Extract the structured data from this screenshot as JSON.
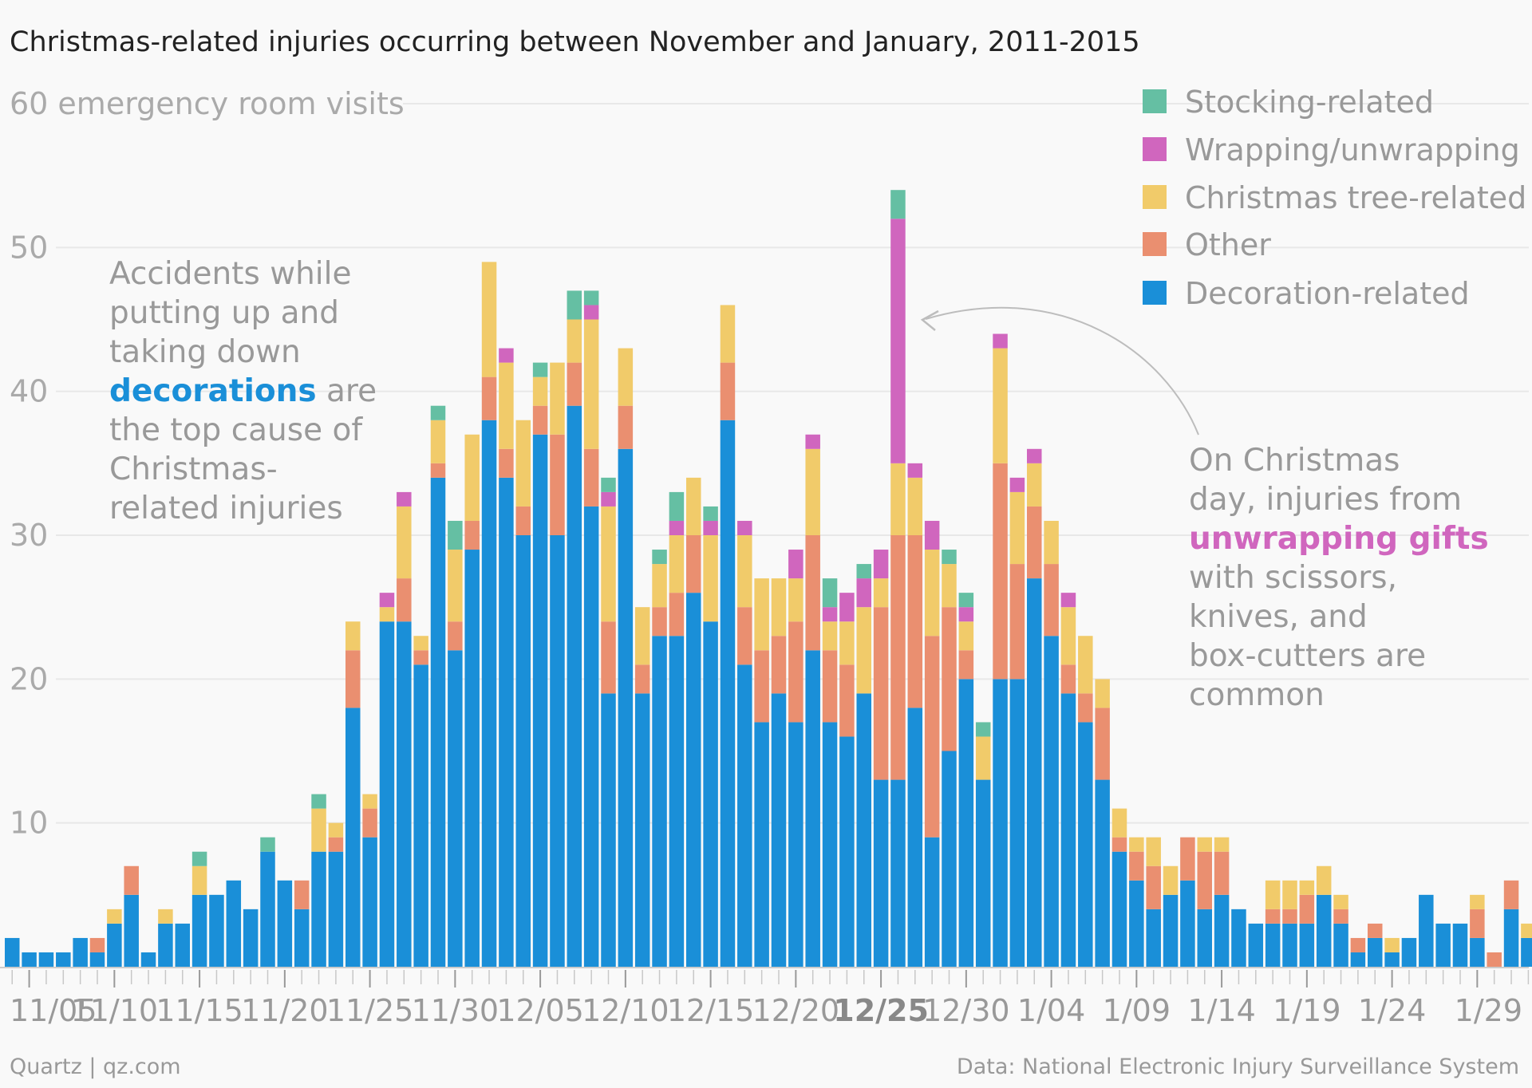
{
  "chart_data": {
    "type": "bar",
    "stacked": true,
    "title": "Christmas-related injuries occurring between November and January, 2011-2015",
    "ylabel": "emergency room visits",
    "ylim": [
      0,
      60
    ],
    "y_ticks": [
      "10",
      "20",
      "30",
      "40",
      "50",
      "60 emergency room visits"
    ],
    "x_tick_labels": [
      "11/05",
      "11/10",
      "11/15",
      "11/20",
      "11/25",
      "11/30",
      "12/05",
      "12/10",
      "12/15",
      "12/20",
      "12/25",
      "12/30",
      "1/04",
      "1/09",
      "1/14",
      "1/19",
      "1/24",
      "1/29"
    ],
    "highlight_tick": "12/25",
    "start_date": "11/04",
    "grid": true,
    "legend_position": "top-right",
    "series": [
      {
        "name": "Decoration-related",
        "color": "#1a8fd8",
        "values": [
          2,
          1,
          1,
          1,
          2,
          1,
          3,
          5,
          1,
          3,
          3,
          5,
          5,
          6,
          4,
          8,
          6,
          4,
          8,
          8,
          18,
          9,
          24,
          24,
          21,
          34,
          22,
          29,
          38,
          34,
          30,
          37,
          30,
          39,
          32,
          19,
          36,
          19,
          23,
          23,
          26,
          24,
          38,
          21,
          17,
          19,
          17,
          22,
          17,
          16,
          19,
          13,
          13,
          18,
          9,
          15,
          20,
          13,
          20,
          20,
          27,
          23,
          19,
          17,
          13,
          8,
          6,
          4,
          5,
          6,
          4,
          5,
          4,
          3,
          3,
          3,
          3,
          5,
          3,
          1,
          2,
          1,
          2,
          5,
          3,
          3,
          2,
          0,
          4,
          2
        ]
      },
      {
        "name": "Other",
        "color": "#ea8f70",
        "values": [
          0,
          0,
          0,
          0,
          0,
          1,
          0,
          2,
          0,
          0,
          0,
          0,
          0,
          0,
          0,
          0,
          0,
          2,
          0,
          1,
          4,
          2,
          0,
          3,
          1,
          1,
          2,
          2,
          3,
          2,
          2,
          2,
          7,
          3,
          4,
          5,
          3,
          2,
          2,
          3,
          4,
          0,
          4,
          4,
          5,
          4,
          7,
          8,
          5,
          5,
          0,
          12,
          17,
          12,
          14,
          10,
          2,
          0,
          15,
          8,
          5,
          5,
          2,
          2,
          5,
          1,
          2,
          3,
          0,
          3,
          4,
          3,
          0,
          0,
          1,
          1,
          2,
          0,
          1,
          1,
          1,
          0,
          0,
          0,
          0,
          0,
          2,
          1,
          2,
          0
        ]
      },
      {
        "name": "Christmas tree-related",
        "color": "#f1cb6a",
        "values": [
          0,
          0,
          0,
          0,
          0,
          0,
          1,
          0,
          0,
          1,
          0,
          2,
          0,
          0,
          0,
          0,
          0,
          0,
          3,
          1,
          2,
          1,
          1,
          5,
          1,
          3,
          5,
          6,
          8,
          6,
          6,
          2,
          5,
          3,
          9,
          8,
          4,
          4,
          3,
          4,
          4,
          6,
          4,
          5,
          5,
          4,
          3,
          6,
          2,
          3,
          6,
          2,
          5,
          4,
          6,
          3,
          2,
          3,
          8,
          5,
          3,
          3,
          4,
          4,
          2,
          2,
          1,
          2,
          2,
          0,
          1,
          1,
          0,
          0,
          2,
          2,
          1,
          2,
          1,
          0,
          0,
          1,
          0,
          0,
          0,
          0,
          1,
          0,
          0,
          1
        ]
      },
      {
        "name": "Wrapping/unwrapping",
        "color": "#d066be",
        "values": [
          0,
          0,
          0,
          0,
          0,
          0,
          0,
          0,
          0,
          0,
          0,
          0,
          0,
          0,
          0,
          0,
          0,
          0,
          0,
          0,
          0,
          0,
          1,
          1,
          0,
          0,
          0,
          0,
          0,
          1,
          0,
          0,
          0,
          0,
          1,
          1,
          0,
          0,
          0,
          1,
          0,
          1,
          0,
          1,
          0,
          0,
          2,
          1,
          1,
          2,
          2,
          2,
          17,
          1,
          2,
          0,
          1,
          0,
          1,
          1,
          1,
          0,
          1,
          0,
          0,
          0,
          0,
          0,
          0,
          0,
          0,
          0,
          0,
          0,
          0,
          0,
          0,
          0,
          0,
          0,
          0,
          0,
          0,
          0,
          0,
          0,
          0,
          0,
          0,
          0
        ]
      },
      {
        "name": "Stocking-related",
        "color": "#65bfa3",
        "values": [
          0,
          0,
          0,
          0,
          0,
          0,
          0,
          0,
          0,
          0,
          0,
          1,
          0,
          0,
          0,
          1,
          0,
          0,
          1,
          0,
          0,
          0,
          0,
          0,
          0,
          1,
          2,
          0,
          0,
          0,
          0,
          1,
          0,
          2,
          1,
          1,
          0,
          0,
          1,
          2,
          0,
          1,
          0,
          0,
          0,
          0,
          0,
          0,
          2,
          0,
          1,
          0,
          2,
          0,
          0,
          1,
          1,
          1,
          0,
          0,
          0,
          0,
          0,
          0,
          0,
          0,
          0,
          0,
          0,
          0,
          0,
          0,
          0,
          0,
          0,
          0,
          0,
          0,
          0,
          0,
          0,
          0,
          0,
          0,
          0,
          0,
          0,
          0,
          0,
          0
        ]
      }
    ],
    "legend": [
      "Stocking-related",
      "Wrapping/unwrapping",
      "Christmas tree-related",
      "Other",
      "Decoration-related"
    ],
    "annotations": {
      "left": {
        "lines": [
          [
            "Accidents while"
          ],
          [
            "putting up and"
          ],
          [
            "taking down"
          ],
          [
            "decorations",
            " are"
          ],
          [
            "the top cause of"
          ],
          [
            "Christmas-"
          ],
          [
            "related injuries"
          ]
        ],
        "highlight": "decorations"
      },
      "right": {
        "lines": [
          [
            "On Christmas"
          ],
          [
            "day, injuries from"
          ],
          [
            "unwrapping gifts"
          ],
          [
            "with scissors,"
          ],
          [
            "knives, and"
          ],
          [
            "box-cutters are"
          ],
          [
            "common"
          ]
        ],
        "highlight": "unwrapping gifts"
      }
    }
  },
  "footer": {
    "source_left": "Quartz | qz.com",
    "source_right": "Data: National Electronic Injury Surveillance System"
  }
}
